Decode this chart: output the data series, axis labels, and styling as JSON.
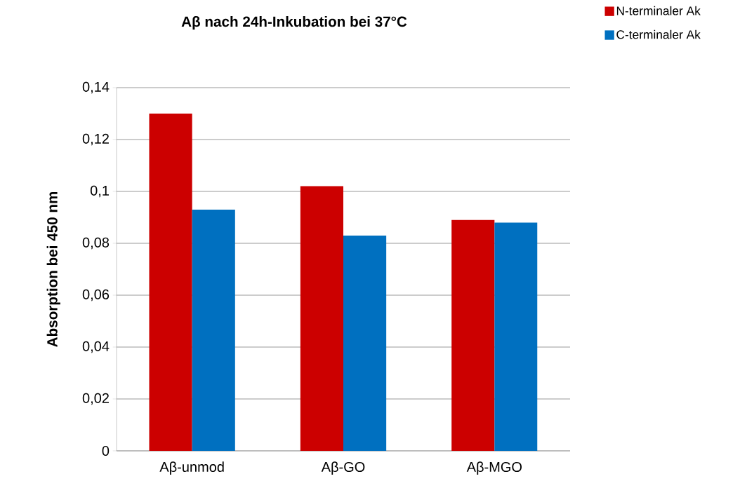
{
  "chart_data": {
    "type": "bar",
    "title": "Aβ nach 24h-Inkubation bei 37°C",
    "ylabel": "Absorption bei 450 nm",
    "categories": [
      "Aβ-unmod",
      "Aβ-GO",
      "Aβ-MGO"
    ],
    "series": [
      {
        "name": "N-terminaler Ak",
        "color": "#cc0000",
        "values": [
          0.13,
          0.102,
          0.089
        ]
      },
      {
        "name": "C-terminaler Ak",
        "color": "#0070c0",
        "values": [
          0.093,
          0.083,
          0.088
        ]
      }
    ],
    "ylim": [
      0,
      0.14
    ],
    "yticks": [
      {
        "value": 0,
        "label": "0"
      },
      {
        "value": 0.02,
        "label": "0,02"
      },
      {
        "value": 0.04,
        "label": "0,04"
      },
      {
        "value": 0.06,
        "label": "0,06"
      },
      {
        "value": 0.08,
        "label": "0,08"
      },
      {
        "value": 0.1,
        "label": "0,1"
      },
      {
        "value": 0.12,
        "label": "0,12"
      },
      {
        "value": 0.14,
        "label": "0,14"
      }
    ],
    "grid": "y",
    "legend": "top right"
  }
}
